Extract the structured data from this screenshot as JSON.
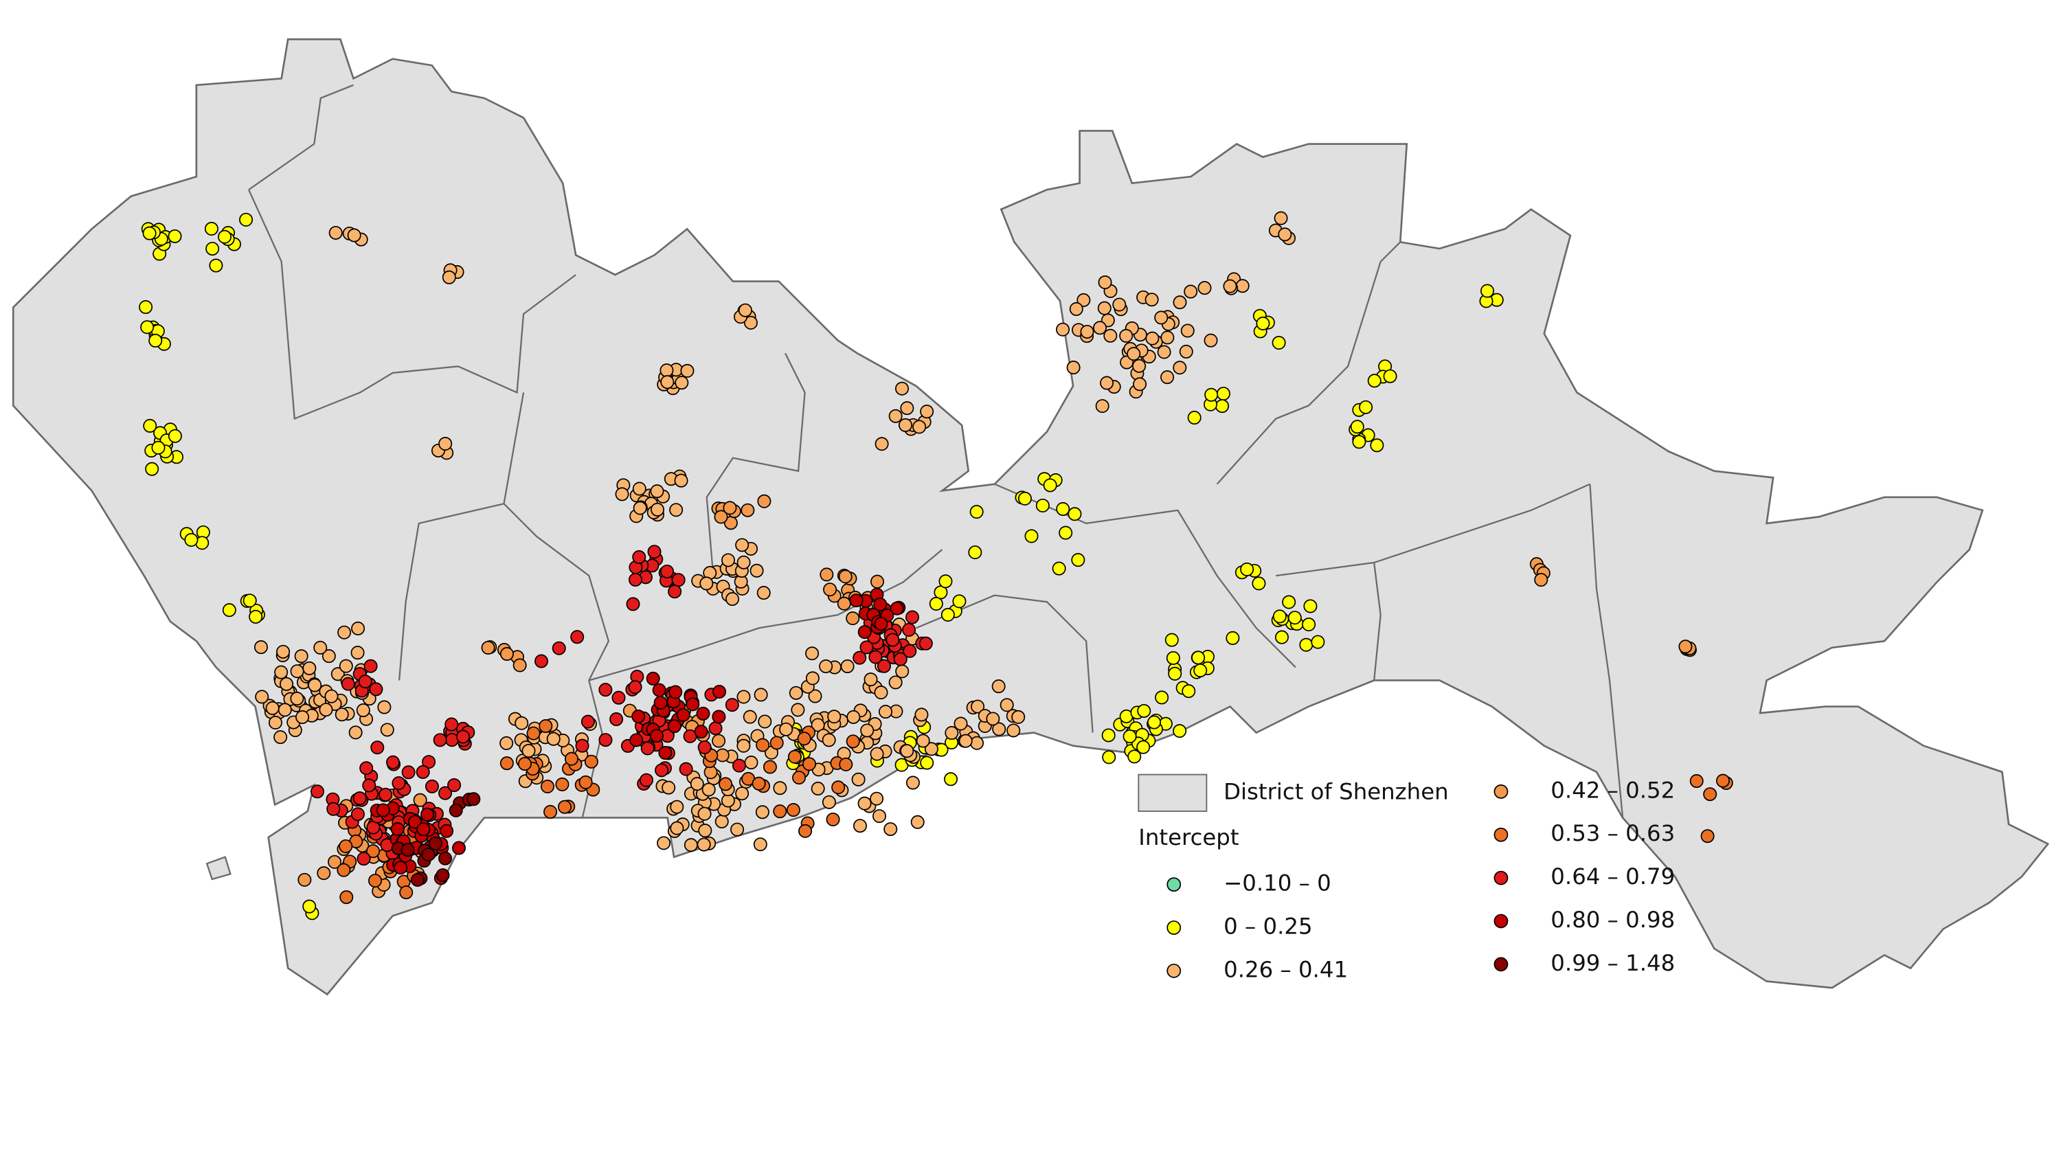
{
  "legend": {
    "district": "District of Shenzhen",
    "district_color": "#e0e0e0",
    "title": "Intercept",
    "classes": [
      {
        "label": "−0.10 – 0",
        "color": "#6fdba5"
      },
      {
        "label": "0 – 0.25",
        "color": "#ffff00"
      },
      {
        "label": "0.26 – 0.41",
        "color": "#f9b46e"
      },
      {
        "label": "0.42 – 0.52",
        "color": "#f39a4c"
      },
      {
        "label": "0.53 – 0.63",
        "color": "#ec7024"
      },
      {
        "label": "0.64 – 0.79",
        "color": "#e31a1a"
      },
      {
        "label": "0.80 – 0.98",
        "color": "#c40000"
      },
      {
        "label": "0.99 – 1.48",
        "color": "#8a0000"
      }
    ]
  }
}
